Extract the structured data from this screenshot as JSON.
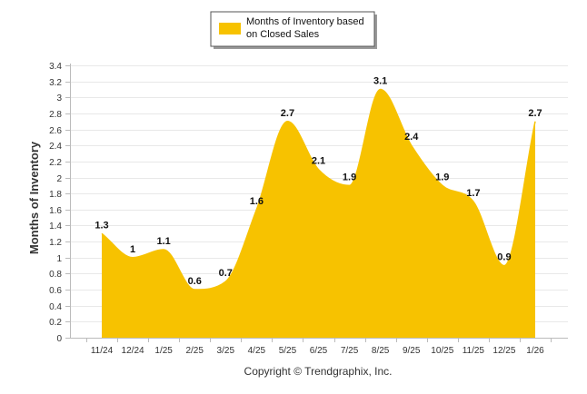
{
  "chart_data": {
    "type": "area",
    "title": "",
    "xlabel": "",
    "ylabel": "Months of Inventory",
    "ylim": [
      0,
      3.4
    ],
    "ytick_step": 0.2,
    "yticks": [
      "0",
      "0.2",
      "0.4",
      "0.6",
      "0.8",
      "1",
      "1.2",
      "1.4",
      "1.6",
      "1.8",
      "2",
      "2.2",
      "2.4",
      "2.6",
      "2.8",
      "3",
      "3.2",
      "3.4"
    ],
    "categories": [
      "11/24",
      "12/24",
      "1/25",
      "2/25",
      "3/25",
      "4/25",
      "5/25",
      "6/25",
      "7/25",
      "8/25",
      "9/25",
      "10/25",
      "11/25",
      "12/25",
      "1/26"
    ],
    "series": [
      {
        "name": "Months of Inventory based on Closed Sales",
        "values": [
          1.3,
          1,
          1.1,
          0.6,
          0.7,
          1.6,
          2.7,
          2.1,
          1.9,
          3.1,
          2.4,
          1.9,
          1.7,
          0.9,
          2.7
        ],
        "labels": [
          "1.3",
          "1",
          "1.1",
          "0.6",
          "0.7",
          "1.6",
          "2.7",
          "2.1",
          "1.9",
          "3.1",
          "2.4",
          "1.9",
          "1.7",
          "0.9",
          "2.7"
        ],
        "color": "#F7C200"
      }
    ],
    "legend": {
      "position": "top-center",
      "line1": "Months of Inventory based",
      "line2": "on Closed Sales"
    },
    "grid": true,
    "gridColor": "#e8e8e8",
    "axisColor": "#bbbbbb",
    "copyright": "Copyright © Trendgraphix, Inc."
  }
}
